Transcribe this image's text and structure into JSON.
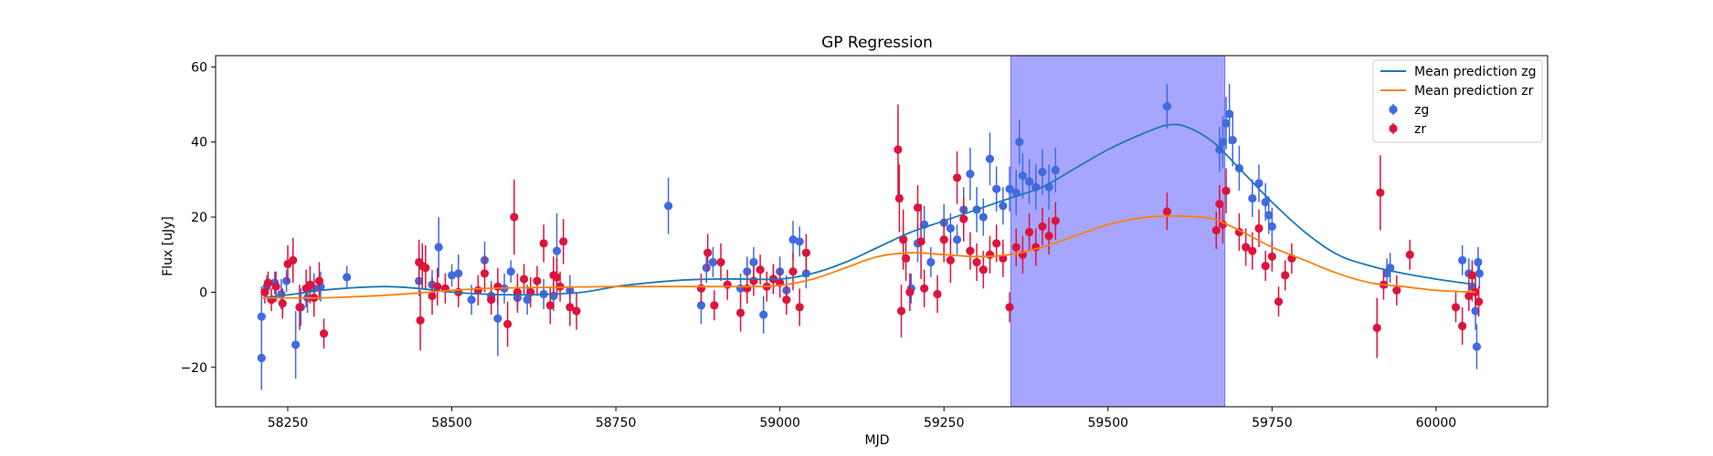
{
  "chart_data": {
    "type": "scatter",
    "title": "GP Regression",
    "xlabel": "MJD",
    "ylabel": "Flux [uJy]",
    "xlim": [
      58140,
      60170
    ],
    "ylim": [
      -30.5,
      63
    ],
    "xticks": [
      58250,
      58500,
      58750,
      59000,
      59250,
      59500,
      59750,
      60000
    ],
    "yticks": [
      -20,
      0,
      20,
      40,
      60
    ],
    "xtick_labels": [
      "58250",
      "58500",
      "58750",
      "59000",
      "59250",
      "59500",
      "59750",
      "60000"
    ],
    "ytick_labels": [
      "−20",
      "0",
      "20",
      "40",
      "60"
    ],
    "highlight_span": {
      "x0": 59352,
      "x1": 59678,
      "color": "#a6a6ff"
    },
    "grid": false,
    "legend_position": "top-right",
    "colors": {
      "zg_line": "#1f77b4",
      "zr_line": "#ff7f0e",
      "zg_points": "#4169e1",
      "zr_points": "#dc143c"
    },
    "series": [
      {
        "name": "Mean prediction zg",
        "kind": "line",
        "color": "#1f77b4",
        "x": [
          58210,
          58260,
          58300,
          58350,
          58400,
          58450,
          58500,
          58550,
          58600,
          58650,
          58700,
          58750,
          58800,
          58850,
          58900,
          58950,
          59000,
          59050,
          59100,
          59150,
          59200,
          59250,
          59300,
          59350,
          59400,
          59450,
          59500,
          59550,
          59590,
          59620,
          59660,
          59700,
          59750,
          59800,
          59850,
          59900,
          59950,
          60000,
          60060
        ],
        "y": [
          -1.5,
          -0.5,
          0.5,
          1.2,
          1.5,
          1,
          0,
          -0.5,
          -0.7,
          -0.5,
          0,
          1.5,
          2.5,
          3.2,
          3.5,
          3.5,
          3.5,
          5,
          8,
          12,
          16,
          19,
          22,
          25,
          28,
          33,
          38,
          42,
          44.5,
          44,
          40,
          33,
          24,
          16,
          10,
          7,
          5,
          3.5,
          2
        ]
      },
      {
        "name": "Mean prediction zr",
        "kind": "line",
        "color": "#ff7f0e",
        "x": [
          58210,
          58250,
          58300,
          58350,
          58400,
          58450,
          58500,
          58550,
          58600,
          58650,
          58700,
          58750,
          58800,
          58850,
          58900,
          58950,
          59000,
          59050,
          59100,
          59150,
          59200,
          59250,
          59300,
          59350,
          59400,
          59450,
          59500,
          59550,
          59590,
          59620,
          59660,
          59700,
          59750,
          59800,
          59850,
          59900,
          59950,
          60000,
          60060
        ],
        "y": [
          -1.5,
          -1.5,
          -1.5,
          -1.2,
          -0.8,
          -0.2,
          0.5,
          1,
          1.2,
          1.3,
          1.4,
          1.5,
          1.5,
          1.5,
          1.5,
          1.5,
          1.8,
          3.5,
          6.5,
          9.5,
          10.5,
          10,
          9.5,
          10,
          12,
          15,
          18,
          19.8,
          20.3,
          20.2,
          19.5,
          16.5,
          12,
          8.5,
          5,
          2.5,
          1.5,
          0.5,
          0
        ]
      },
      {
        "name": "zg",
        "kind": "errorbar",
        "color": "#4169e1",
        "points": [
          [
            58210,
            -17.5,
            8.5
          ],
          [
            58210,
            -6.5,
            8
          ],
          [
            58218,
            1.5,
            3
          ],
          [
            58230,
            2.5,
            3
          ],
          [
            58240,
            -0.5,
            4
          ],
          [
            58248,
            3,
            3
          ],
          [
            58262,
            -14,
            9
          ],
          [
            58270,
            -4,
            5
          ],
          [
            58280,
            -1.5,
            4
          ],
          [
            58290,
            1,
            4
          ],
          [
            58300,
            1.5,
            4
          ],
          [
            58340,
            4,
            3
          ],
          [
            58450,
            3,
            4
          ],
          [
            58470,
            2,
            4
          ],
          [
            58480,
            12,
            8
          ],
          [
            58500,
            4.5,
            3
          ],
          [
            58510,
            5,
            5
          ],
          [
            58530,
            -2,
            4
          ],
          [
            58550,
            8.5,
            5
          ],
          [
            58560,
            -1,
            4
          ],
          [
            58570,
            -7,
            10
          ],
          [
            58580,
            1,
            4
          ],
          [
            58590,
            5.5,
            3
          ],
          [
            58600,
            -1.5,
            4
          ],
          [
            58615,
            -2,
            4
          ],
          [
            58640,
            -0.5,
            4
          ],
          [
            58655,
            -1,
            4
          ],
          [
            58660,
            11,
            10
          ],
          [
            58680,
            0.5,
            4
          ],
          [
            58830,
            23,
            7.5
          ],
          [
            58880,
            -3.5,
            5
          ],
          [
            58888,
            6.5,
            4
          ],
          [
            58898,
            8,
            4
          ],
          [
            58940,
            1,
            4
          ],
          [
            58950,
            5.5,
            4
          ],
          [
            58960,
            8,
            4
          ],
          [
            58975,
            -6,
            5
          ],
          [
            58990,
            3.5,
            4
          ],
          [
            59000,
            5.5,
            4
          ],
          [
            59010,
            0.5,
            4
          ],
          [
            59020,
            14,
            5
          ],
          [
            59030,
            13.5,
            4
          ],
          [
            59040,
            5,
            4
          ],
          [
            59200,
            1,
            4
          ],
          [
            59210,
            13,
            5
          ],
          [
            59220,
            18,
            5
          ],
          [
            59230,
            8,
            4
          ],
          [
            59250,
            18.5,
            5
          ],
          [
            59260,
            17,
            4
          ],
          [
            59270,
            14,
            4
          ],
          [
            59280,
            22,
            6
          ],
          [
            59290,
            31.5,
            7
          ],
          [
            59300,
            22,
            6
          ],
          [
            59310,
            20,
            5
          ],
          [
            59320,
            35.5,
            7
          ],
          [
            59330,
            27.5,
            6
          ],
          [
            59340,
            23,
            5
          ],
          [
            59350,
            27.5,
            6
          ],
          [
            59360,
            26.5,
            6
          ],
          [
            59365,
            40,
            6
          ],
          [
            59370,
            31,
            6
          ],
          [
            59380,
            29.5,
            6
          ],
          [
            59390,
            28,
            6
          ],
          [
            59400,
            32,
            6
          ],
          [
            59410,
            28,
            6
          ],
          [
            59420,
            32.5,
            6
          ],
          [
            59590,
            49.5,
            6
          ],
          [
            59670,
            38,
            6
          ],
          [
            59675,
            40,
            7
          ],
          [
            59680,
            45,
            7
          ],
          [
            59685,
            47.5,
            8
          ],
          [
            59690,
            40.5,
            7
          ],
          [
            59700,
            33,
            6
          ],
          [
            59720,
            25,
            5
          ],
          [
            59730,
            29,
            5
          ],
          [
            59740,
            24,
            5
          ],
          [
            59745,
            20.5,
            5
          ],
          [
            59750,
            17.5,
            5
          ],
          [
            59925,
            5,
            4
          ],
          [
            59930,
            6.5,
            4
          ],
          [
            60040,
            8.5,
            4
          ],
          [
            60050,
            5,
            4
          ],
          [
            60055,
            1.5,
            4
          ],
          [
            60060,
            -5,
            5
          ],
          [
            60062,
            -14.5,
            6
          ],
          [
            60064,
            8,
            4
          ],
          [
            60066,
            5,
            4
          ]
        ]
      },
      {
        "name": "zr",
        "kind": "errorbar",
        "color": "#dc143c",
        "points": [
          [
            58215,
            0,
            3
          ],
          [
            58220,
            2.5,
            3
          ],
          [
            58225,
            -2,
            3
          ],
          [
            58232,
            1.5,
            4
          ],
          [
            58242,
            -3,
            4
          ],
          [
            58250,
            7.5,
            5
          ],
          [
            58258,
            8.5,
            6
          ],
          [
            58268,
            -4,
            6
          ],
          [
            58278,
            1,
            5
          ],
          [
            58284,
            2,
            5
          ],
          [
            58290,
            -1.5,
            5
          ],
          [
            58298,
            3,
            5
          ],
          [
            58305,
            -11,
            4
          ],
          [
            58450,
            8,
            6
          ],
          [
            58452,
            -7.5,
            8
          ],
          [
            58455,
            7,
            6
          ],
          [
            58460,
            6.5,
            6
          ],
          [
            58470,
            -1,
            5
          ],
          [
            58478,
            1.5,
            5
          ],
          [
            58490,
            1,
            4
          ],
          [
            58510,
            0,
            4
          ],
          [
            58540,
            0.5,
            4
          ],
          [
            58550,
            5,
            5
          ],
          [
            58560,
            -2,
            4
          ],
          [
            58570,
            1.5,
            5
          ],
          [
            58585,
            -8.5,
            6
          ],
          [
            58595,
            20,
            10
          ],
          [
            58600,
            0,
            5
          ],
          [
            58610,
            3.5,
            4
          ],
          [
            58620,
            0,
            4
          ],
          [
            58630,
            3,
            4
          ],
          [
            58640,
            13,
            5
          ],
          [
            58650,
            -3.5,
            5
          ],
          [
            58655,
            4.5,
            5
          ],
          [
            58660,
            4,
            5
          ],
          [
            58665,
            1.5,
            4
          ],
          [
            58670,
            13.5,
            6
          ],
          [
            58680,
            -4,
            5
          ],
          [
            58690,
            -5,
            5
          ],
          [
            58880,
            1,
            4
          ],
          [
            58890,
            10.5,
            5
          ],
          [
            58900,
            -3.5,
            4
          ],
          [
            58910,
            8,
            5
          ],
          [
            58920,
            2,
            4
          ],
          [
            58940,
            -5.5,
            5
          ],
          [
            58950,
            1,
            4
          ],
          [
            58960,
            3,
            4
          ],
          [
            58970,
            6,
            4
          ],
          [
            58980,
            1.5,
            4
          ],
          [
            58990,
            3.5,
            4
          ],
          [
            59000,
            2.5,
            4
          ],
          [
            59010,
            -2,
            4
          ],
          [
            59020,
            5.5,
            5
          ],
          [
            59030,
            -4,
            5
          ],
          [
            59040,
            10.5,
            5
          ],
          [
            59180,
            38,
            12
          ],
          [
            59182,
            25,
            9
          ],
          [
            59185,
            -5,
            7
          ],
          [
            59188,
            14,
            8
          ],
          [
            59192,
            9,
            6
          ],
          [
            59198,
            0,
            5
          ],
          [
            59210,
            22.5,
            6
          ],
          [
            59215,
            13.5,
            10
          ],
          [
            59220,
            1,
            5
          ],
          [
            59240,
            -0.5,
            5
          ],
          [
            59250,
            14,
            6
          ],
          [
            59260,
            8.5,
            6
          ],
          [
            59270,
            30.5,
            7
          ],
          [
            59280,
            19.5,
            6
          ],
          [
            59290,
            11,
            5
          ],
          [
            59300,
            8,
            5
          ],
          [
            59310,
            6,
            5
          ],
          [
            59320,
            10,
            5
          ],
          [
            59330,
            13,
            5
          ],
          [
            59340,
            9,
            5
          ],
          [
            59350,
            -4,
            4
          ],
          [
            59360,
            12,
            5
          ],
          [
            59370,
            10,
            5
          ],
          [
            59380,
            16,
            5
          ],
          [
            59390,
            12,
            5
          ],
          [
            59400,
            17.5,
            5
          ],
          [
            59410,
            15,
            5
          ],
          [
            59420,
            19,
            5
          ],
          [
            59590,
            21.5,
            5
          ],
          [
            59665,
            16.5,
            5
          ],
          [
            59670,
            23.5,
            5
          ],
          [
            59675,
            18,
            5
          ],
          [
            59680,
            27,
            6
          ],
          [
            59700,
            16,
            5
          ],
          [
            59710,
            12,
            5
          ],
          [
            59720,
            11,
            5
          ],
          [
            59730,
            17,
            5
          ],
          [
            59740,
            7,
            4
          ],
          [
            59750,
            9.5,
            4
          ],
          [
            59760,
            -2.5,
            4
          ],
          [
            59770,
            4.5,
            4
          ],
          [
            59780,
            9,
            4
          ],
          [
            59910,
            -9.5,
            8
          ],
          [
            59915,
            26.5,
            10
          ],
          [
            59920,
            2,
            4
          ],
          [
            59940,
            0.5,
            4
          ],
          [
            59960,
            10,
            4
          ],
          [
            60030,
            -4,
            4
          ],
          [
            60040,
            -9,
            5
          ],
          [
            60050,
            -1,
            4
          ],
          [
            60055,
            4.5,
            4
          ],
          [
            60060,
            0,
            4
          ],
          [
            60065,
            -2.5,
            4
          ]
        ]
      }
    ]
  }
}
